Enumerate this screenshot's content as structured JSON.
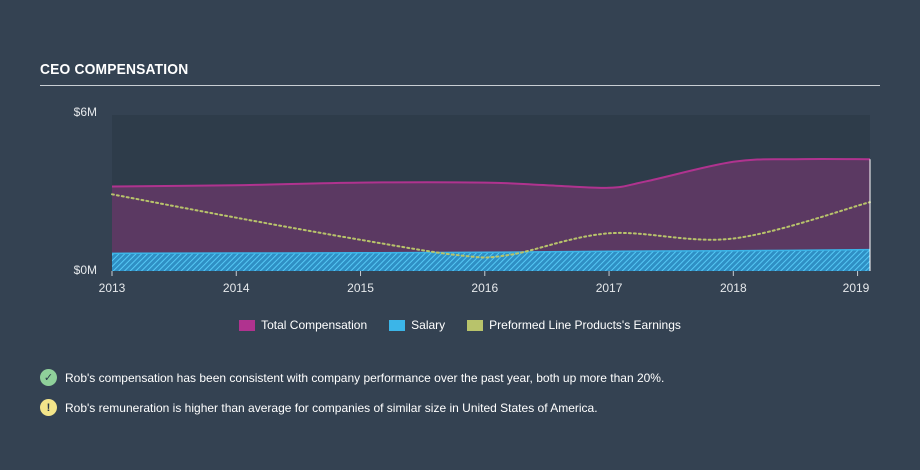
{
  "header": {
    "title": "CEO COMPENSATION"
  },
  "chart_data": {
    "type": "area",
    "title": "",
    "xlabel": "",
    "ylabel": "",
    "ylim": [
      0,
      6
    ],
    "y_ticks": [
      {
        "value": 0,
        "label": "$0M"
      },
      {
        "value": 6,
        "label": "$6M"
      }
    ],
    "x_ticks": [
      {
        "value": 2013,
        "label": "2013"
      },
      {
        "value": 2014,
        "label": "2014"
      },
      {
        "value": 2015,
        "label": "2015"
      },
      {
        "value": 2016,
        "label": "2016"
      },
      {
        "value": 2017,
        "label": "2017"
      },
      {
        "value": 2018,
        "label": "2018"
      },
      {
        "value": 2019,
        "label": "2019"
      }
    ],
    "xlim": [
      2013,
      2019.1
    ],
    "legend_position": "bottom-center",
    "series": [
      {
        "name": "Total Compensation",
        "color": "#b0338f",
        "style": "filled-area",
        "x": [
          2013,
          2014,
          2015,
          2016,
          2016.5,
          2017,
          2017.3,
          2018,
          2018.5,
          2019.1
        ],
        "values": [
          3.25,
          3.3,
          3.4,
          3.4,
          3.3,
          3.2,
          3.45,
          4.2,
          4.3,
          4.3
        ]
      },
      {
        "name": "Salary",
        "color": "#3bb5e8",
        "style": "hatched-area",
        "x": [
          2013,
          2014,
          2015,
          2016,
          2017,
          2018,
          2019.1
        ],
        "values": [
          0.68,
          0.69,
          0.7,
          0.72,
          0.76,
          0.78,
          0.82
        ]
      },
      {
        "name": "Preformed Line Products's Earnings",
        "color": "#b8c36b",
        "style": "dotted-line",
        "x": [
          2013,
          2014,
          2015,
          2015.8,
          2016.2,
          2017,
          2018,
          2019.1
        ],
        "values": [
          2.95,
          2.05,
          1.2,
          0.6,
          0.62,
          1.45,
          1.25,
          2.65
        ]
      }
    ]
  },
  "notes": [
    {
      "icon": "check-icon",
      "symbol": "✓",
      "color": "#8fd09a",
      "text": "Rob's compensation has been consistent with company performance over the past year, both up more than 20%."
    },
    {
      "icon": "warning-icon",
      "symbol": "!",
      "color": "#f3e58a",
      "text": "Rob's remuneration is higher than average for companies of similar size in United States of America."
    }
  ]
}
